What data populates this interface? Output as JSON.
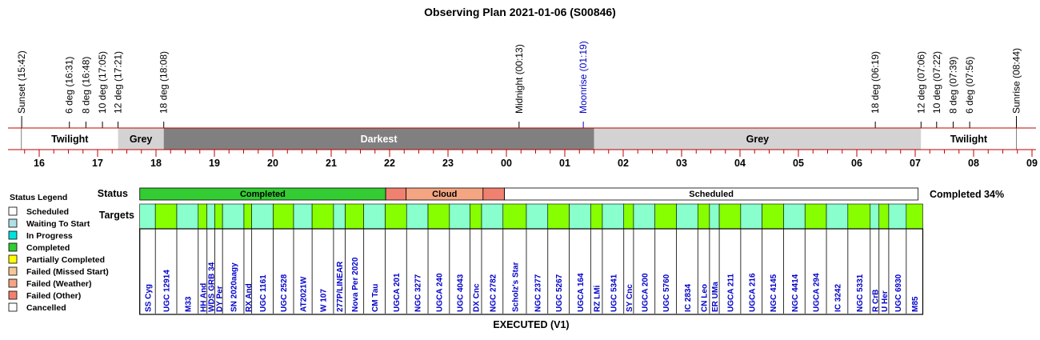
{
  "title": "Observing Plan 2021-01-06 (S00846)",
  "events": [
    {
      "label": "Sunset (15:42)",
      "x": 15.7,
      "color": "#000000"
    },
    {
      "label": "6 deg (16:31)",
      "x": 16.517,
      "color": "#000000"
    },
    {
      "label": "8 deg (16:48)",
      "x": 16.8,
      "color": "#000000"
    },
    {
      "label": "10 deg (17:05)",
      "x": 17.083,
      "color": "#000000"
    },
    {
      "label": "12 deg (17:21)",
      "x": 17.35,
      "color": "#000000"
    },
    {
      "label": "18 deg (18:08)",
      "x": 18.133,
      "color": "#000000"
    },
    {
      "label": "Midnight (00:13)",
      "x": 24.217,
      "color": "#000000"
    },
    {
      "label": "Moonrise (01:19)",
      "x": 25.317,
      "color": "#0000c8"
    },
    {
      "label": "18 deg (06:19)",
      "x": 30.317,
      "color": "#000000"
    },
    {
      "label": "12 deg (07:06)",
      "x": 31.1,
      "color": "#000000"
    },
    {
      "label": "10 deg (07:22)",
      "x": 31.367,
      "color": "#000000"
    },
    {
      "label": "8 deg (07:39)",
      "x": 31.65,
      "color": "#000000"
    },
    {
      "label": "6 deg (07:56)",
      "x": 31.933,
      "color": "#000000"
    },
    {
      "label": "Sunrise (08:44)",
      "x": 32.733,
      "color": "#000000"
    }
  ],
  "bands": [
    {
      "label": "Twilight",
      "start": 15.7,
      "end": 17.35,
      "fill": "#ffffff",
      "text_color": "#000000"
    },
    {
      "label": "Grey",
      "start": 17.35,
      "end": 18.133,
      "fill": "#d3d3d3",
      "text_color": "#000000"
    },
    {
      "label": "Darkest",
      "start": 18.133,
      "end": 25.5,
      "fill": "#808080",
      "text_color": "#ffffff"
    },
    {
      "label": "Grey",
      "start": 25.5,
      "end": 31.1,
      "fill": "#d3d3d3",
      "text_color": "#000000"
    },
    {
      "label": "Twilight",
      "start": 31.1,
      "end": 32.733,
      "fill": "#ffffff",
      "text_color": "#000000"
    }
  ],
  "hours": [
    "16",
    "17",
    "18",
    "19",
    "20",
    "21",
    "22",
    "23",
    "00",
    "01",
    "02",
    "03",
    "04",
    "05",
    "06",
    "07",
    "08",
    "09"
  ],
  "status_label": "Status",
  "targets_label": "Targets",
  "status_segments": [
    {
      "label": "Completed",
      "start": 17.722,
      "end": 21.933,
      "fill": "#33cc33"
    },
    {
      "label": "",
      "start": 21.933,
      "end": 22.283,
      "fill": "#f08070"
    },
    {
      "label": "Cloud",
      "start": 22.283,
      "end": 23.6,
      "fill": "#f4a582"
    },
    {
      "label": "",
      "start": 23.6,
      "end": 23.967,
      "fill": "#f08070"
    },
    {
      "label": "Scheduled",
      "start": 23.967,
      "end": 31.05,
      "fill": "#ffffff"
    }
  ],
  "completed_pct": "Completed 34%",
  "targets_start": 17.722,
  "targets": [
    {
      "name": "SS Cyg",
      "dur": 0.267,
      "color": "#88ffcc"
    },
    {
      "name": "UGC 12914",
      "dur": 0.367,
      "color": "#88ff00"
    },
    {
      "name": "M33",
      "dur": 0.367,
      "color": "#88ffcc"
    },
    {
      "name": "HH And",
      "dur": 0.15,
      "color": "#88ff00"
    },
    {
      "name": "WDS GRB 34",
      "dur": 0.133,
      "color": "#88ffcc"
    },
    {
      "name": "DY Per",
      "dur": 0.133,
      "color": "#88ff00"
    },
    {
      "name": "SN 2020aagy",
      "dur": 0.367,
      "color": "#88ffcc"
    },
    {
      "name": "RX And",
      "dur": 0.133,
      "color": "#88ff00"
    },
    {
      "name": "UGC 1161",
      "dur": 0.367,
      "color": "#88ffcc"
    },
    {
      "name": "UGC 2528",
      "dur": 0.35,
      "color": "#88ff00"
    },
    {
      "name": "AT2021W",
      "dur": 0.317,
      "color": "#88ffcc"
    },
    {
      "name": "W 107",
      "dur": 0.367,
      "color": "#88ff00"
    },
    {
      "name": "277P/LINEAR",
      "dur": 0.2,
      "color": "#88ffcc"
    },
    {
      "name": "Nova Per 2020",
      "dur": 0.317,
      "color": "#88ff00"
    },
    {
      "name": "CM Tau",
      "dur": 0.367,
      "color": "#88ffcc"
    },
    {
      "name": "UGCA 201",
      "dur": 0.367,
      "color": "#88ff00"
    },
    {
      "name": "NGC 3277",
      "dur": 0.367,
      "color": "#88ffcc"
    },
    {
      "name": "UGCA 240",
      "dur": 0.367,
      "color": "#88ff00"
    },
    {
      "name": "UGC 4043",
      "dur": 0.35,
      "color": "#88ffcc"
    },
    {
      "name": "DX Cnc",
      "dur": 0.2,
      "color": "#88ff00"
    },
    {
      "name": "NGC 2782",
      "dur": 0.367,
      "color": "#88ffcc"
    },
    {
      "name": "Scholz's Star",
      "dur": 0.4,
      "color": "#88ff00"
    },
    {
      "name": "NGC 2377",
      "dur": 0.367,
      "color": "#88ffcc"
    },
    {
      "name": "UGC 5267",
      "dur": 0.367,
      "color": "#88ff00"
    },
    {
      "name": "UGCA 164",
      "dur": 0.367,
      "color": "#88ffcc"
    },
    {
      "name": "RZ LMi",
      "dur": 0.2,
      "color": "#88ff00"
    },
    {
      "name": "UGC 5341",
      "dur": 0.367,
      "color": "#88ffcc"
    },
    {
      "name": "SY Cnc",
      "dur": 0.167,
      "color": "#88ff00"
    },
    {
      "name": "UGCA 200",
      "dur": 0.367,
      "color": "#88ffcc"
    },
    {
      "name": "UGC 5760",
      "dur": 0.367,
      "color": "#88ff00"
    },
    {
      "name": "IC 2834",
      "dur": 0.367,
      "color": "#88ffcc"
    },
    {
      "name": "CN Leo",
      "dur": 0.2,
      "color": "#88ff00"
    },
    {
      "name": "ER UMa",
      "dur": 0.167,
      "color": "#88ffcc"
    },
    {
      "name": "UGCA 211",
      "dur": 0.367,
      "color": "#88ff00"
    },
    {
      "name": "UGCA 216",
      "dur": 0.367,
      "color": "#88ffcc"
    },
    {
      "name": "NGC 4145",
      "dur": 0.367,
      "color": "#88ff00"
    },
    {
      "name": "NGC 4414",
      "dur": 0.367,
      "color": "#88ffcc"
    },
    {
      "name": "UGCA 294",
      "dur": 0.367,
      "color": "#88ff00"
    },
    {
      "name": "IC 3242",
      "dur": 0.367,
      "color": "#88ffcc"
    },
    {
      "name": "NGC 5331",
      "dur": 0.383,
      "color": "#88ff00"
    },
    {
      "name": "R CrB",
      "dur": 0.15,
      "color": "#88ffcc"
    },
    {
      "name": "U Her",
      "dur": 0.167,
      "color": "#88ff00"
    },
    {
      "name": "UGC 6930",
      "dur": 0.3,
      "color": "#88ffcc"
    },
    {
      "name": "M85",
      "dur": 0.283,
      "color": "#88ff00"
    }
  ],
  "legend": {
    "title": "Status Legend",
    "items": [
      {
        "label": "Scheduled",
        "color": "#ffffff"
      },
      {
        "label": "Waiting To Start",
        "color": "#b0e0e6"
      },
      {
        "label": "In Progress",
        "color": "#00e0e0"
      },
      {
        "label": "Completed",
        "color": "#33cc33"
      },
      {
        "label": "Partially Completed",
        "color": "#ffff00"
      },
      {
        "label": "Failed (Missed Start)",
        "color": "#f4c896"
      },
      {
        "label": "Failed (Weather)",
        "color": "#f4a582"
      },
      {
        "label": "Failed (Other)",
        "color": "#f08070"
      },
      {
        "label": "Cancelled",
        "color": "#ffffff"
      }
    ]
  },
  "executed_label": "EXECUTED (V1)",
  "colors": {
    "axis_line": "#c00000",
    "event_tick": "#000000"
  }
}
